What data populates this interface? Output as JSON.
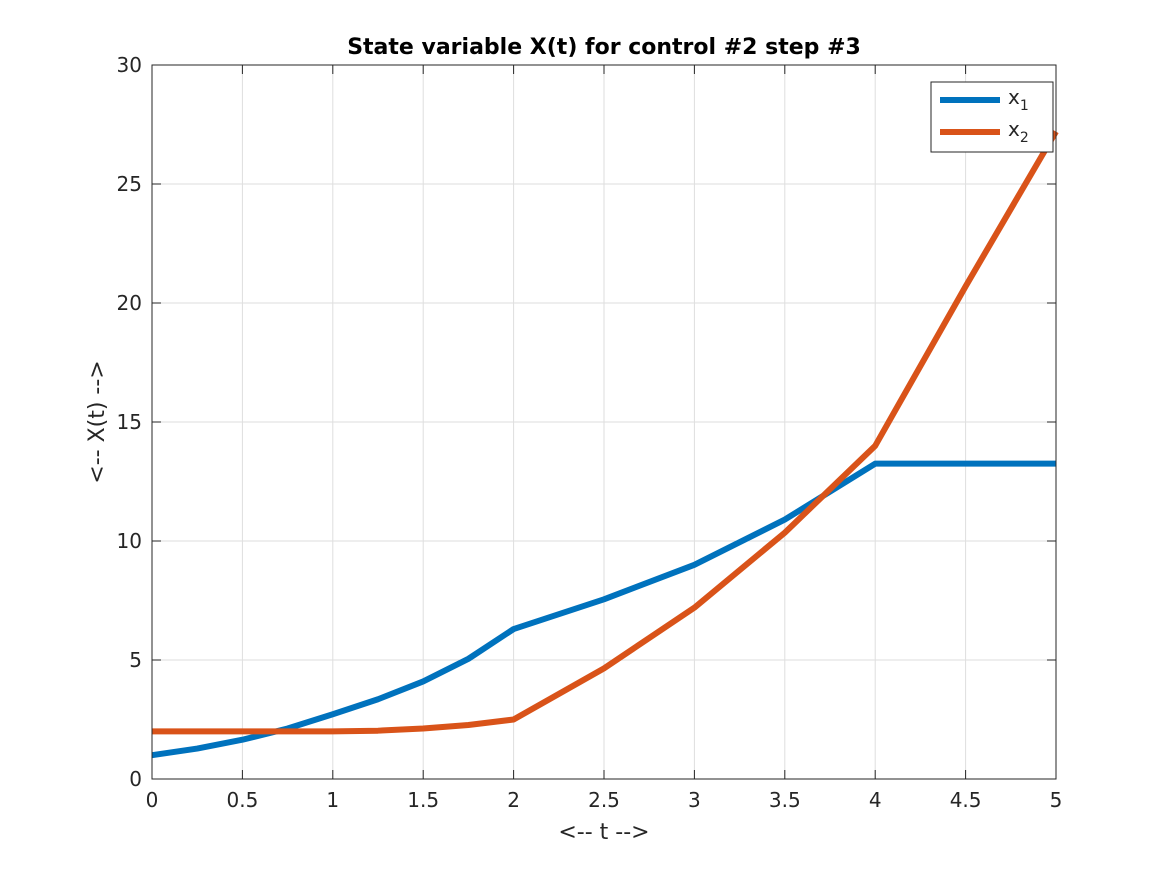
{
  "chart_data": {
    "type": "line",
    "title": "State variable X(t) for control #2 step #3",
    "xlabel": "<-- t -->",
    "ylabel": "<-- X(t) -->",
    "xlim": [
      0,
      5
    ],
    "ylim": [
      0,
      30
    ],
    "xticks": [
      0,
      0.5,
      1,
      1.5,
      2,
      2.5,
      3,
      3.5,
      4,
      4.5,
      5
    ],
    "xtick_labels": [
      "0",
      "0.5",
      "1",
      "1.5",
      "2",
      "2.5",
      "3",
      "3.5",
      "4",
      "4.5",
      "5"
    ],
    "yticks": [
      0,
      5,
      10,
      15,
      20,
      25,
      30
    ],
    "ytick_labels": [
      "0",
      "5",
      "10",
      "15",
      "20",
      "25",
      "30"
    ],
    "grid": true,
    "legend_position": "top-right",
    "series": [
      {
        "name": "x",
        "subscript": "1",
        "color": "#0072BD",
        "x": [
          0,
          0.25,
          0.5,
          0.75,
          1,
          1.25,
          1.5,
          1.75,
          2,
          2.5,
          3,
          3.5,
          4,
          4.5,
          5
        ],
        "y": [
          1.0,
          1.28,
          1.65,
          2.12,
          2.72,
          3.35,
          4.1,
          5.05,
          6.3,
          7.55,
          9.0,
          10.9,
          13.25,
          13.25,
          13.25
        ]
      },
      {
        "name": "x",
        "subscript": "2",
        "color": "#D95319",
        "x": [
          0,
          0.5,
          1,
          1.25,
          1.5,
          1.75,
          2,
          2.5,
          3,
          3.5,
          4,
          4.5,
          5
        ],
        "y": [
          2.0,
          2.0,
          2.0,
          2.03,
          2.12,
          2.27,
          2.5,
          4.65,
          7.2,
          10.35,
          14.0,
          20.7,
          27.2
        ]
      }
    ]
  }
}
